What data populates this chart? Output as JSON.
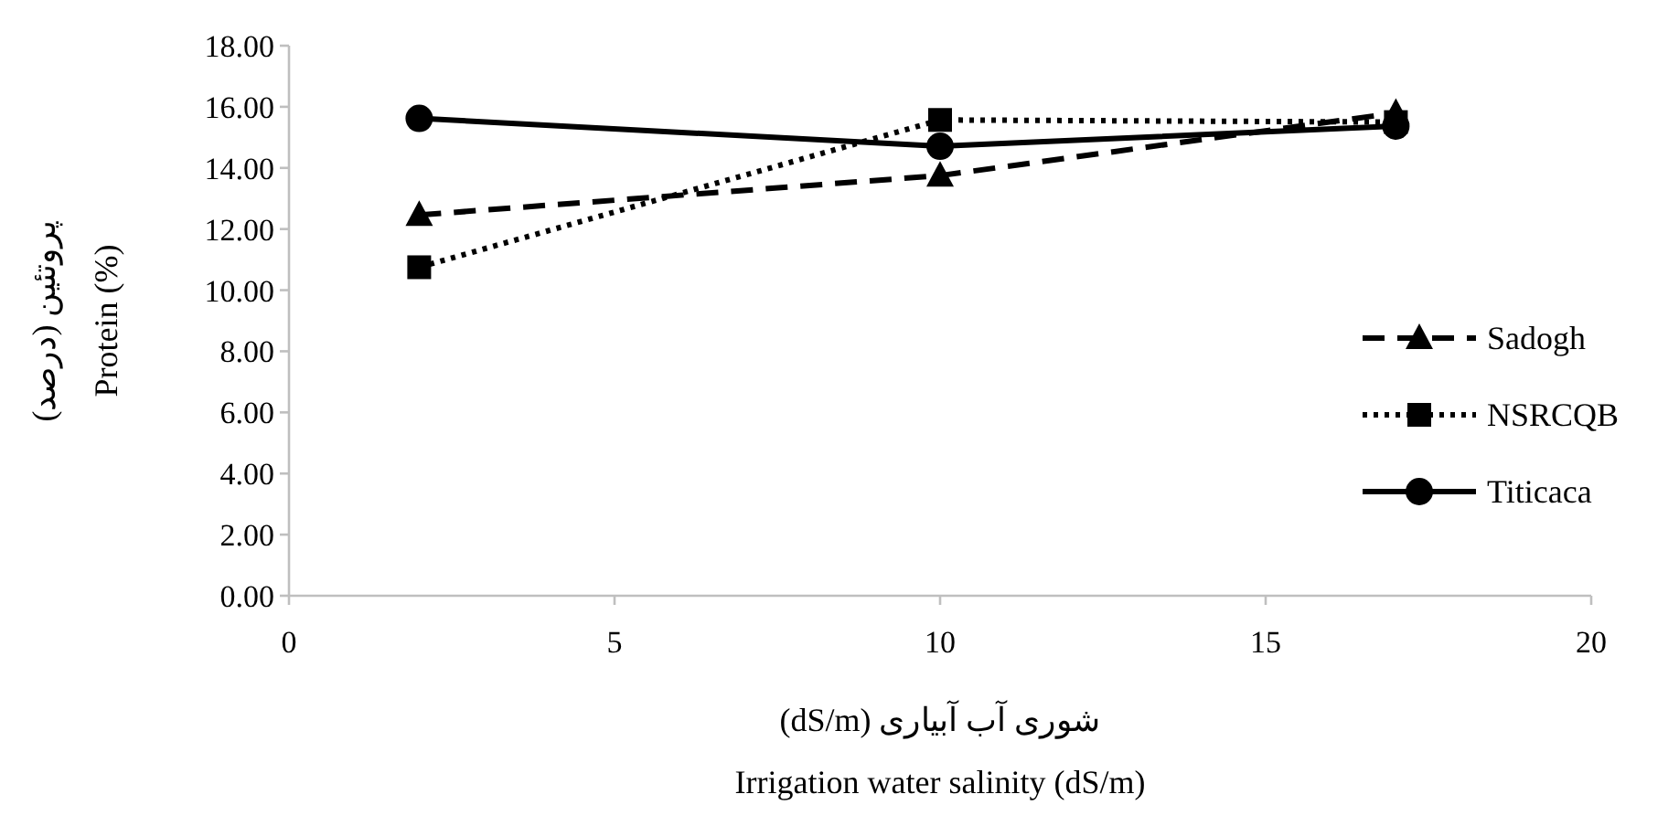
{
  "chart_data": {
    "type": "line",
    "xlabel": "شوری آب آبیاری (dS/m)\nIrrigation water salinity (dS/m)",
    "ylabel": "پروتئین (درصد)\nProtein (%)",
    "x": [
      2,
      10,
      17
    ],
    "series": [
      {
        "name": "Sadogh",
        "color": "#000000",
        "values": [
          12.46,
          13.75,
          15.8
        ],
        "marker": "triangle",
        "line_style": "dashed"
      },
      {
        "name": "NSRCQB",
        "color": "#000000",
        "values": [
          10.75,
          15.57,
          15.5
        ],
        "marker": "square",
        "line_style": "dotted"
      },
      {
        "name": "Titicaca",
        "color": "#000000",
        "values": [
          15.62,
          14.71,
          15.37
        ],
        "marker": "circle",
        "line_style": "solid"
      }
    ],
    "xlim": [
      0,
      20
    ],
    "xticks": [
      0,
      5,
      10,
      15,
      20
    ],
    "ylim": [
      0,
      18
    ],
    "yticks": [
      {
        "value": 0,
        "label": "0.00"
      },
      {
        "value": 2,
        "label": "2.00"
      },
      {
        "value": 4,
        "label": "4.00"
      },
      {
        "value": 6,
        "label": "6.00"
      },
      {
        "value": 8,
        "label": "8.00"
      },
      {
        "value": 10,
        "label": "10.00"
      },
      {
        "value": 12,
        "label": "12.00"
      },
      {
        "value": 14,
        "label": "14.00"
      },
      {
        "value": 16,
        "label": "16.00"
      },
      {
        "value": 18,
        "label": "18.00"
      }
    ],
    "grid": false,
    "legend": "right"
  }
}
